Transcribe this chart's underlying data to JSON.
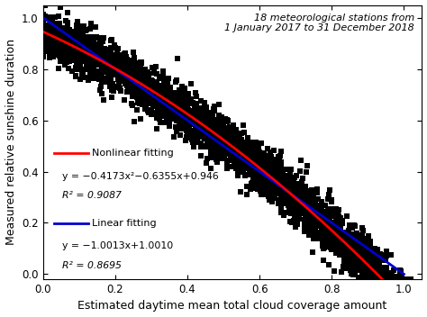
{
  "title_annotation": "18 meteorological stations from\n1 January 2017 to 31 December 2018",
  "xlabel": "Estimated daytime mean total cloud coverage amount",
  "ylabel": "Measured relative sunshine duration",
  "xlim": [
    0.0,
    1.05
  ],
  "ylim": [
    -0.02,
    1.05
  ],
  "xticks": [
    0.0,
    0.2,
    0.4,
    0.6,
    0.8,
    1.0
  ],
  "yticks": [
    0.0,
    0.2,
    0.4,
    0.6,
    0.8,
    1.0
  ],
  "nonlinear_label": "Nonlinear fitting",
  "nonlinear_eq": "y = −0.4173x²−0.6355x+0.946",
  "nonlinear_r2": "R² = 0.9087",
  "linear_label": "Linear fitting",
  "linear_eq": "y = −1.0013x+1.0010",
  "linear_r2": "R² = 0.8695",
  "nonlinear_color": "#FF0000",
  "linear_color": "#0000CC",
  "scatter_color": "#000000",
  "background_color": "#ffffff",
  "scatter_marker": "s",
  "scatter_size": 18,
  "nonlinear_a": -0.4173,
  "nonlinear_b": -0.6355,
  "nonlinear_c": 0.946,
  "linear_m": -1.0013,
  "linear_b_val": 1.001,
  "seed": 42,
  "n_points": 3000
}
